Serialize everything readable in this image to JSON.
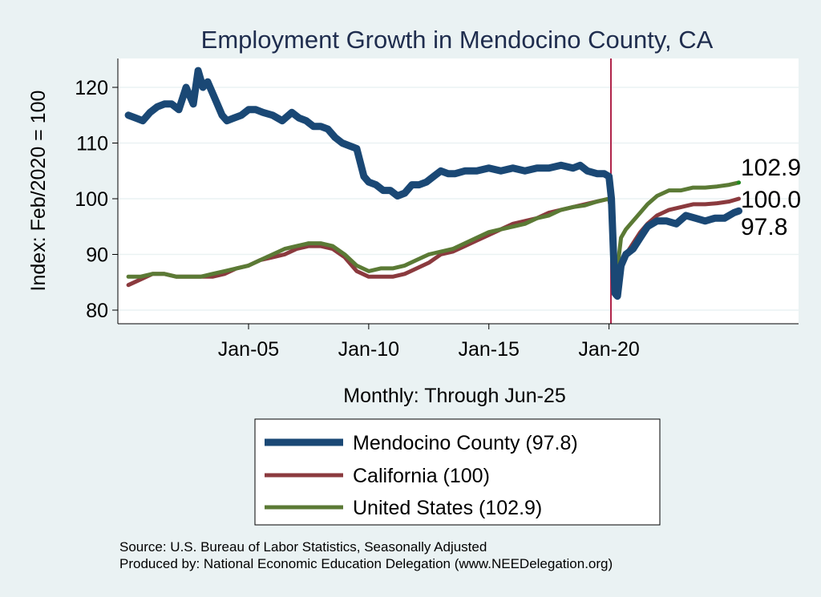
{
  "chart_data": {
    "type": "line",
    "title": "Employment Growth in Mendocino  County, CA",
    "xlabel": "Monthly: Through Jun-25",
    "ylabel": "Index: Feb/2020 = 100",
    "ylim": [
      78,
      125
    ],
    "xlim": [
      2000.0,
      2028.5
    ],
    "yticks": [
      80,
      90,
      100,
      110,
      120
    ],
    "xticks": [
      {
        "value": 2005,
        "label": "Jan-05"
      },
      {
        "value": 2010,
        "label": "Jan-10"
      },
      {
        "value": 2015,
        "label": "Jan-15"
      },
      {
        "value": 2020,
        "label": "Jan-20"
      }
    ],
    "vline": 2020.08,
    "grid": true,
    "legend_position": "bottom",
    "series": [
      {
        "name": "Mendocino  County (97.8)",
        "color": "#1a4875",
        "x": [
          2000.0,
          2000.3,
          2000.6,
          2000.9,
          2001.2,
          2001.5,
          2001.8,
          2002.1,
          2002.4,
          2002.7,
          2002.9,
          2003.1,
          2003.3,
          2003.5,
          2003.7,
          2003.9,
          2004.1,
          2004.4,
          2004.7,
          2005.0,
          2005.3,
          2005.6,
          2006.0,
          2006.4,
          2006.8,
          2007.1,
          2007.4,
          2007.7,
          2008.0,
          2008.3,
          2008.6,
          2008.9,
          2009.2,
          2009.5,
          2009.8,
          2010.0,
          2010.3,
          2010.6,
          2010.9,
          2011.2,
          2011.5,
          2011.8,
          2012.1,
          2012.4,
          2012.7,
          2013.0,
          2013.3,
          2013.6,
          2014.0,
          2014.5,
          2015.0,
          2015.5,
          2016.0,
          2016.5,
          2017.0,
          2017.5,
          2018.0,
          2018.5,
          2018.8,
          2019.1,
          2019.5,
          2019.8,
          2020.0,
          2020.1,
          2020.25,
          2020.35,
          2020.5,
          2020.7,
          2021.0,
          2021.3,
          2021.6,
          2022.0,
          2022.4,
          2022.8,
          2023.2,
          2023.6,
          2024.0,
          2024.4,
          2024.8,
          2025.2,
          2025.4
        ],
        "y": [
          115,
          114.5,
          114,
          115.5,
          116.5,
          117,
          117,
          116,
          120,
          117,
          123,
          120,
          121,
          119,
          117,
          115,
          114,
          114.5,
          115,
          116,
          116,
          115.5,
          115,
          114,
          115.5,
          114.5,
          114,
          113,
          113,
          112.5,
          111,
          110,
          109.5,
          109,
          104,
          103,
          102.5,
          101.5,
          101.5,
          100.5,
          101,
          102.5,
          102.5,
          103,
          104,
          105,
          104.5,
          104.5,
          105,
          105,
          105.5,
          105,
          105.5,
          105,
          105.5,
          105.5,
          106,
          105.5,
          106,
          105,
          104.5,
          104.5,
          104,
          100,
          83,
          82.5,
          88,
          90,
          91,
          93,
          95,
          96,
          96,
          95.5,
          97,
          96.5,
          96,
          96.5,
          96.5,
          97.5,
          97.8
        ]
      },
      {
        "name": "California (100)",
        "color": "#8b3a3e",
        "x": [
          2000.0,
          2000.5,
          2001.0,
          2001.5,
          2002.0,
          2002.5,
          2003.0,
          2003.5,
          2004.0,
          2004.5,
          2005.0,
          2005.5,
          2006.0,
          2006.5,
          2007.0,
          2007.5,
          2008.0,
          2008.5,
          2009.0,
          2009.5,
          2010.0,
          2010.5,
          2011.0,
          2011.5,
          2012.0,
          2012.5,
          2013.0,
          2013.5,
          2014.0,
          2014.5,
          2015.0,
          2015.5,
          2016.0,
          2016.5,
          2017.0,
          2017.5,
          2018.0,
          2018.5,
          2019.0,
          2019.5,
          2020.0,
          2020.1,
          2020.25,
          2020.35,
          2020.5,
          2020.7,
          2021.0,
          2021.3,
          2021.6,
          2022.0,
          2022.5,
          2023.0,
          2023.5,
          2024.0,
          2024.5,
          2025.0,
          2025.4
        ],
        "y": [
          84.5,
          85.5,
          86.5,
          86.5,
          86,
          86,
          86,
          86,
          86.5,
          87.5,
          88,
          89,
          89.5,
          90,
          91,
          91.5,
          91.5,
          91,
          89.5,
          87,
          86,
          86,
          86,
          86.5,
          87.5,
          88.5,
          90,
          90.5,
          91.5,
          92.5,
          93.5,
          94.5,
          95.5,
          96,
          96.5,
          97.5,
          98,
          98.5,
          99,
          99.5,
          100,
          98,
          84,
          85,
          88,
          90,
          92,
          94,
          95.5,
          97,
          98,
          98.5,
          99,
          99,
          99.2,
          99.5,
          100
        ]
      },
      {
        "name": "United States (102.9)",
        "color": "#5b7a35",
        "x": [
          2000.0,
          2000.5,
          2001.0,
          2001.5,
          2002.0,
          2002.5,
          2003.0,
          2003.5,
          2004.0,
          2004.5,
          2005.0,
          2005.5,
          2006.0,
          2006.5,
          2007.0,
          2007.5,
          2008.0,
          2008.5,
          2009.0,
          2009.5,
          2010.0,
          2010.5,
          2011.0,
          2011.5,
          2012.0,
          2012.5,
          2013.0,
          2013.5,
          2014.0,
          2014.5,
          2015.0,
          2015.5,
          2016.0,
          2016.5,
          2017.0,
          2017.5,
          2018.0,
          2018.5,
          2019.0,
          2019.5,
          2020.0,
          2020.1,
          2020.25,
          2020.35,
          2020.5,
          2020.7,
          2021.0,
          2021.3,
          2021.6,
          2022.0,
          2022.5,
          2023.0,
          2023.5,
          2024.0,
          2024.5,
          2025.0,
          2025.4
        ],
        "y": [
          86,
          86,
          86.5,
          86.5,
          86,
          86,
          86,
          86.5,
          87,
          87.5,
          88,
          89,
          90,
          91,
          91.5,
          92,
          92,
          91.5,
          90,
          88,
          87,
          87.5,
          87.5,
          88,
          89,
          90,
          90.5,
          91,
          92,
          93,
          94,
          94.5,
          95,
          95.5,
          96.5,
          97,
          98,
          98.5,
          98.8,
          99.5,
          100,
          98,
          85,
          87.5,
          93,
          94.5,
          96,
          97.5,
          99,
          100.5,
          101.5,
          101.5,
          102,
          102,
          102.2,
          102.5,
          102.9
        ]
      }
    ],
    "end_labels": [
      {
        "text": "102.9",
        "value": 102.9
      },
      {
        "text": "100.0",
        "value": 100.0
      },
      {
        "text": "97.8",
        "value": 97.8
      }
    ]
  },
  "legend": {
    "items": [
      {
        "label": "Mendocino  County (97.8)",
        "color": "#1a4875",
        "width": 9
      },
      {
        "label": "California (100)",
        "color": "#8b3a3e",
        "width": 5
      },
      {
        "label": "United States (102.9)",
        "color": "#5b7a35",
        "width": 5
      }
    ]
  },
  "source_lines": [
    "Source: U.S. Bureau of Labor Statistics, Seasonally Adjusted",
    "Produced by: National Economic Education Delegation (www.NEEDelegation.org)"
  ]
}
